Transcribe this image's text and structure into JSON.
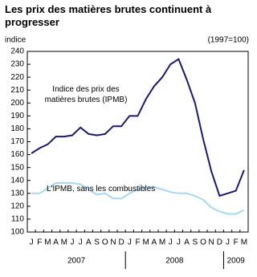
{
  "chart_data": {
    "type": "line",
    "title": "Les prix des matières brutes continuent à progresser",
    "y_label": "indice",
    "base_note": "(1997=100)",
    "categories": [
      "J",
      "F",
      "M",
      "A",
      "M",
      "J",
      "J",
      "A",
      "S",
      "O",
      "N",
      "D",
      "J",
      "F",
      "M",
      "A",
      "M",
      "J",
      "J",
      "A",
      "S",
      "O",
      "N",
      "D",
      "J",
      "F",
      "M"
    ],
    "year_groups": [
      {
        "label": "2007",
        "start": 0,
        "end": 11
      },
      {
        "label": "2008",
        "start": 12,
        "end": 23
      },
      {
        "label": "2009",
        "start": 24,
        "end": 26
      }
    ],
    "series": [
      {
        "name": "Indice des prix des matières brutes (IPMB)",
        "color": "#1a1a6e",
        "values": [
          161,
          165,
          168,
          174,
          174,
          175,
          181,
          176,
          175,
          176,
          182,
          182,
          190,
          190,
          203,
          213,
          220,
          230,
          234,
          218,
          200,
          172,
          147,
          128,
          130,
          132,
          148
        ]
      },
      {
        "name": "L'IPMB, sans les combustibles",
        "color": "#a8d8f0",
        "values": [
          130,
          130,
          134,
          138,
          138,
          138,
          137,
          133,
          129,
          130,
          126,
          126,
          130,
          133,
          135,
          135,
          133,
          131,
          130,
          130,
          128,
          125,
          119,
          116,
          114,
          114,
          117
        ]
      }
    ],
    "ylim": [
      100,
      240
    ],
    "yticks": [
      100,
      110,
      120,
      130,
      140,
      150,
      160,
      170,
      180,
      190,
      200,
      210,
      220,
      230,
      240
    ],
    "grid": false
  }
}
